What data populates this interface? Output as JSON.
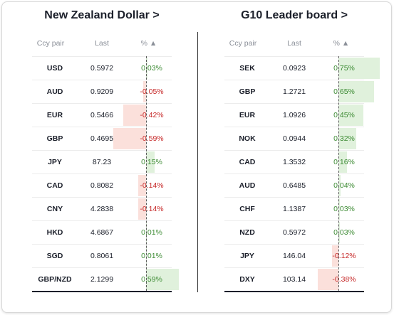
{
  "left": {
    "title": "New Zealand Dollar >",
    "headers": {
      "ccy": "Ccy pair",
      "last": "Last",
      "pct": "% ▲"
    },
    "rows": [
      {
        "ccy": "USD",
        "last": "0.5972",
        "pct": "0.03%",
        "value": 0.03
      },
      {
        "ccy": "AUD",
        "last": "0.9209",
        "pct": "-0.05%",
        "value": -0.05
      },
      {
        "ccy": "EUR",
        "last": "0.5466",
        "pct": "-0.42%",
        "value": -0.42
      },
      {
        "ccy": "GBP",
        "last": "0.4695",
        "pct": "-0.59%",
        "value": -0.59
      },
      {
        "ccy": "JPY",
        "last": "87.23",
        "pct": "0.15%",
        "value": 0.15
      },
      {
        "ccy": "CAD",
        "last": "0.8082",
        "pct": "-0.14%",
        "value": -0.14
      },
      {
        "ccy": "CNY",
        "last": "4.2838",
        "pct": "-0.14%",
        "value": -0.14
      },
      {
        "ccy": "HKD",
        "last": "4.6867",
        "pct": "0.01%",
        "value": 0.01
      },
      {
        "ccy": "SGD",
        "last": "0.8061",
        "pct": "0.01%",
        "value": 0.01
      },
      {
        "ccy": "GBP/NZD",
        "last": "2.1299",
        "pct": "0.59%",
        "value": 0.59
      }
    ]
  },
  "right": {
    "title": "G10 Leader board >",
    "headers": {
      "ccy": "Ccy pair",
      "last": "Last",
      "pct": "% ▲"
    },
    "rows": [
      {
        "ccy": "SEK",
        "last": "0.0923",
        "pct": "0.75%",
        "value": 0.75
      },
      {
        "ccy": "GBP",
        "last": "1.2721",
        "pct": "0.65%",
        "value": 0.65
      },
      {
        "ccy": "EUR",
        "last": "1.0926",
        "pct": "0.45%",
        "value": 0.45
      },
      {
        "ccy": "NOK",
        "last": "0.0944",
        "pct": "0.32%",
        "value": 0.32
      },
      {
        "ccy": "CAD",
        "last": "1.3532",
        "pct": "0.16%",
        "value": 0.16
      },
      {
        "ccy": "AUD",
        "last": "0.6485",
        "pct": "0.04%",
        "value": 0.04
      },
      {
        "ccy": "CHF",
        "last": "1.1387",
        "pct": "0.03%",
        "value": 0.03
      },
      {
        "ccy": "NZD",
        "last": "0.5972",
        "pct": "0.03%",
        "value": 0.03
      },
      {
        "ccy": "JPY",
        "last": "146.04",
        "pct": "-0.12%",
        "value": -0.12
      },
      {
        "ccy": "DXY",
        "last": "103.14",
        "pct": "-0.38%",
        "value": -0.38
      }
    ]
  },
  "colors": {
    "positive_text": "#3d8b34",
    "negative_text": "#c62828",
    "positive_bar": "#e0f1dc",
    "negative_bar": "#fbe0db"
  }
}
